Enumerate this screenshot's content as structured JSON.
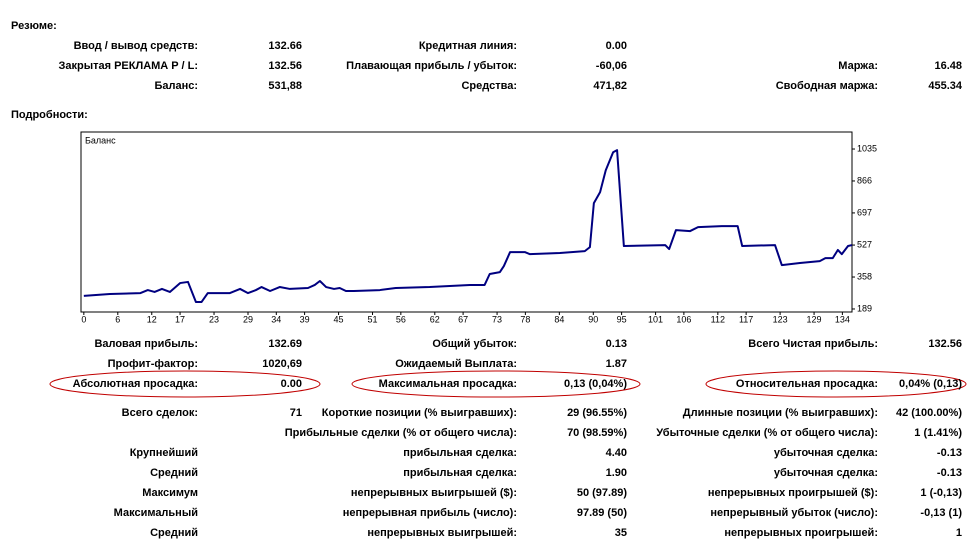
{
  "summary": {
    "title": "Резюме:",
    "rows": [
      [
        {
          "label": "Ввод / вывод средств:",
          "value": "132.66"
        },
        {
          "label": "Кредитная линия:",
          "value": "0.00"
        }
      ],
      [
        {
          "label": "Закрытая РЕКЛАМА P / L:",
          "value": "132.56"
        },
        {
          "label": "Плавающая прибыль / убыток:",
          "value": "-60,06"
        },
        {
          "label": "Маржа:",
          "value": "16.48"
        }
      ],
      [
        {
          "label": "Баланс:",
          "value": "531,88"
        },
        {
          "label": "Средства:",
          "value": "471,82"
        },
        {
          "label": "Свободная маржа:",
          "value": "455.34"
        }
      ]
    ]
  },
  "details": {
    "title": "Подробности:",
    "rows": [
      [
        {
          "label": "Валовая прибыль:",
          "value": "132.69"
        },
        {
          "label": "Общий убыток:",
          "value": "0.13"
        },
        {
          "label": "Всего Чистая прибыль:",
          "value": "132.56"
        }
      ],
      [
        {
          "label": "Профит-фактор:",
          "value": "1020,69"
        },
        {
          "label": "Ожидаемый Выплата:",
          "value": "1.87"
        }
      ],
      [
        {
          "label": "Абсолютная просадка:",
          "value": "0.00"
        },
        {
          "label": "Максимальная просадка:",
          "value": "0,13 (0,04%)"
        },
        {
          "label": "Относительная просадка:",
          "value": "0,04% (0,13)"
        }
      ],
      [
        {
          "label": "Всего сделок:",
          "value": "71"
        },
        {
          "label": "Короткие позиции (% выигравших):",
          "value": "29 (96.55%)"
        },
        {
          "label": "Длинные позиции (% выигравших):",
          "value": "42 (100.00%)"
        }
      ],
      [
        null,
        {
          "label": "Прибыльные сделки (% от общего числа):",
          "value": "70 (98.59%)"
        },
        {
          "label": "Убыточные сделки (% от общего числа):",
          "value": "1 (1.41%)"
        }
      ],
      [
        {
          "label": "Крупнейший"
        },
        {
          "label": "прибыльная сделка:",
          "value": "4.40"
        },
        {
          "label": "убыточная сделка:",
          "value": "-0.13"
        }
      ],
      [
        {
          "label": "Средний"
        },
        {
          "label": "прибыльная сделка:",
          "value": "1.90"
        },
        {
          "label": "убыточная сделка:",
          "value": "-0.13"
        }
      ],
      [
        {
          "label": "Максимум"
        },
        {
          "label": "непрерывных выигрышей ($):",
          "value": "50 (97.89)"
        },
        {
          "label": "непрерывных проигрышей ($):",
          "value": "1 (-0,13)"
        }
      ],
      [
        {
          "label": "Максимальный"
        },
        {
          "label": "непрерывная прибыль (число):",
          "value": "97.89 (50)"
        },
        {
          "label": "непрерывный убыток (число):",
          "value": "-0,13 (1)"
        }
      ],
      [
        {
          "label": "Средний"
        },
        {
          "label": "непрерывных выигрышей:",
          "value": "35"
        },
        {
          "label": "непрерывных проигрышей:",
          "value": "1"
        }
      ]
    ]
  },
  "chart_data": {
    "type": "line",
    "title": "Баланс",
    "color": "#000080",
    "x": [
      0,
      4.6,
      10,
      11.3,
      12.5,
      13.8,
      15.2,
      17,
      18.4,
      19.8,
      20.8,
      21.9,
      25.8,
      27.6,
      29,
      30.4,
      31.4,
      32.9,
      34.6,
      36.4,
      39.6,
      40.8,
      41.7,
      42.8,
      44.2,
      45.2,
      46.3,
      47.7,
      52.3,
      55.1,
      61.1,
      68.2,
      70.8,
      71.7,
      73.5,
      74.2,
      75.3,
      77.9,
      78.8,
      84.1,
      88.5,
      89.4,
      90.1,
      91.2,
      92.2,
      93.5,
      94.2,
      95.4,
      102.7,
      103.4,
      104.6,
      107.1,
      108.5,
      112.7,
      115.5,
      116.3,
      122.1,
      123.3,
      126.5,
      130,
      131,
      132.3,
      133.2,
      133.9,
      135,
      135.7
    ],
    "values": [
      258,
      268,
      273,
      289,
      279,
      295,
      279,
      326,
      332,
      226,
      226,
      273,
      273,
      295,
      273,
      289,
      305,
      284,
      305,
      295,
      300,
      316,
      337,
      305,
      295,
      300,
      284,
      284,
      289,
      300,
      305,
      316,
      316,
      374,
      384,
      416,
      490,
      490,
      479,
      485,
      495,
      516,
      749,
      807,
      923,
      1018,
      1029,
      522,
      527,
      506,
      606,
      601,
      622,
      627,
      627,
      522,
      527,
      421,
      432,
      442,
      458,
      458,
      501,
      479,
      522,
      527
    ],
    "xlim": [
      -0.5,
      135.7
    ],
    "ylim": [
      173,
      1125
    ],
    "xticks": [
      0,
      6,
      12,
      17,
      23,
      29,
      34,
      39,
      45,
      51,
      56,
      62,
      67,
      73,
      78,
      84,
      90,
      95,
      101,
      106,
      112,
      117,
      123,
      129,
      134
    ],
    "yticks": [
      189,
      358,
      527,
      697,
      866,
      1035
    ]
  }
}
